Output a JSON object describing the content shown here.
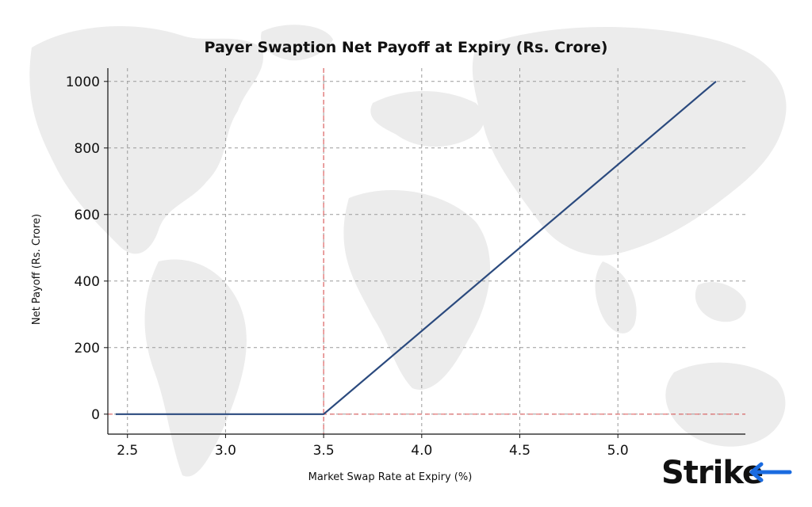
{
  "chart_data": {
    "type": "line",
    "title": "Payer Swaption Net Payoff at Expiry (Rs. Crore)",
    "xlabel": "Market Swap Rate at Expiry (%)",
    "ylabel": "Net Payoff (Rs. Crore)",
    "xlim": [
      2.4,
      5.65
    ],
    "ylim": [
      -60,
      1040
    ],
    "x_ticks": [
      2.5,
      3.0,
      3.5,
      4.0,
      4.5,
      5.0
    ],
    "x_tick_labels": [
      "2.5",
      "3.0",
      "3.5",
      "4.0",
      "4.5",
      "5.0"
    ],
    "y_ticks": [
      0,
      200,
      400,
      600,
      800,
      1000
    ],
    "y_tick_labels": [
      "0",
      "200",
      "400",
      "600",
      "800",
      "1000"
    ],
    "grid": true,
    "series": [
      {
        "x": [
          2.44,
          3.5,
          5.5
        ],
        "y": [
          0,
          0,
          1000
        ],
        "color": "#2b4a7e"
      }
    ],
    "reference_lines": [
      {
        "orientation": "vertical",
        "value": 3.5,
        "style": "dashed",
        "color": "#e06666"
      },
      {
        "orientation": "horizontal",
        "value": 0,
        "style": "dashed",
        "color": "#e06666"
      }
    ]
  },
  "brand": {
    "logo_text": "Strike",
    "accent_color": "#1a6be0"
  }
}
